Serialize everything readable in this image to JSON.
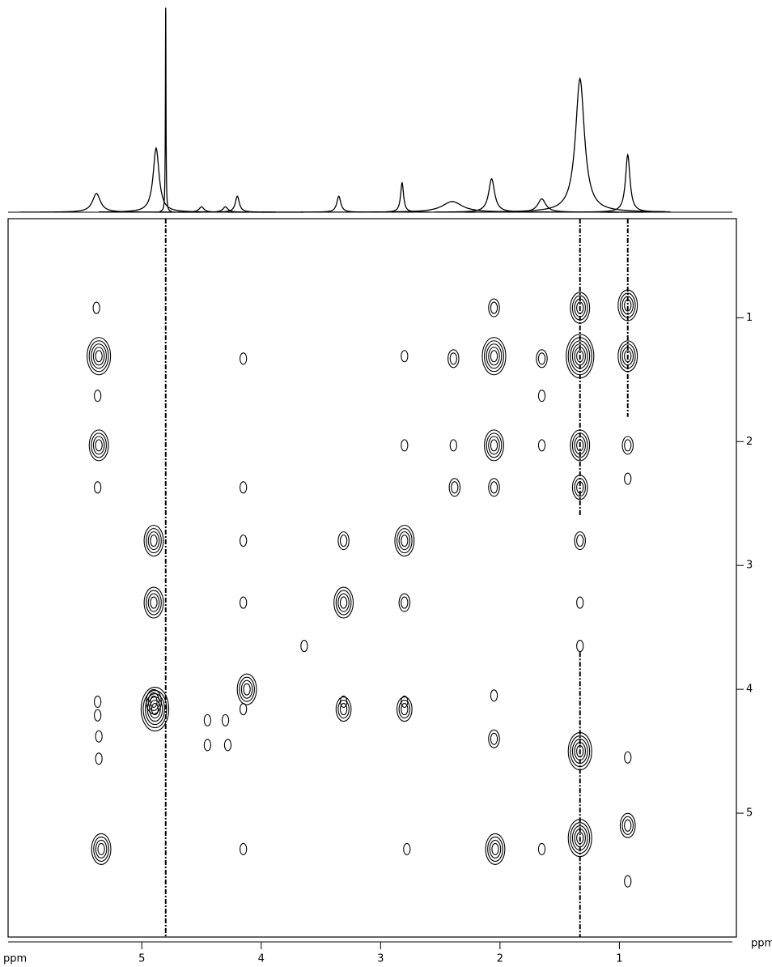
{
  "chart_data": {
    "type": "contour",
    "xlabel": "ppm",
    "ylabel": "ppm",
    "xlim": [
      6.12,
      0.02
    ],
    "ylim": [
      0.2,
      6.0
    ],
    "xticks": [
      5,
      4,
      3,
      2,
      1
    ],
    "yticks": [
      1,
      2,
      3,
      4,
      5
    ],
    "color": "#000000",
    "projection": {
      "x": [
        5.38,
        4.88,
        4.8,
        4.5,
        4.3,
        4.2,
        3.35,
        2.82,
        2.4,
        2.07,
        1.65,
        1.33,
        0.93
      ],
      "heights": [
        14,
        48,
        153,
        4,
        4,
        12,
        12,
        22,
        8,
        25,
        10,
        100,
        43
      ],
      "widths": [
        0.08,
        0.06,
        0.006,
        0.05,
        0.05,
        0.04,
        0.04,
        0.03,
        0.2,
        0.06,
        0.08,
        0.09,
        0.045
      ]
    },
    "streaks": {
      "x": [
        4.8,
        1.33,
        1.33,
        0.93
      ],
      "y0": [
        0.2,
        0.2,
        3.7,
        0.2
      ],
      "y1": [
        6.0,
        2.6,
        6.0,
        1.8
      ]
    },
    "peaks": {
      "x": [
        5.38,
        5.36,
        5.37,
        5.36,
        5.37,
        5.37,
        5.37,
        5.36,
        5.36,
        5.34,
        4.9,
        4.9,
        4.9,
        4.89,
        4.15,
        4.15,
        4.15,
        4.15,
        4.12,
        4.15,
        4.15,
        4.45,
        4.3,
        4.45,
        4.28,
        3.31,
        3.31,
        3.31,
        3.31,
        3.64,
        2.8,
        2.8,
        2.8,
        2.8,
        2.8,
        2.8,
        2.78,
        2.39,
        2.39,
        2.38,
        2.05,
        2.05,
        2.05,
        2.05,
        2.05,
        2.05,
        2.04,
        1.65,
        1.65,
        1.65,
        1.65,
        1.33,
        1.33,
        1.33,
        1.33,
        1.33,
        1.33,
        1.33,
        1.33,
        1.33,
        0.93,
        0.93,
        0.93,
        0.93,
        0.93,
        0.93,
        0.93
      ],
      "y": [
        0.92,
        1.31,
        1.63,
        2.03,
        2.37,
        4.1,
        4.21,
        4.38,
        4.56,
        5.29,
        2.8,
        3.3,
        4.1,
        4.16,
        1.33,
        2.37,
        2.8,
        3.3,
        4.0,
        4.16,
        5.29,
        4.25,
        4.25,
        4.45,
        4.45,
        2.8,
        3.3,
        4.1,
        4.16,
        3.65,
        1.31,
        2.03,
        2.8,
        3.3,
        4.1,
        4.16,
        5.29,
        1.33,
        2.03,
        2.37,
        0.92,
        1.31,
        2.03,
        2.37,
        4.05,
        4.4,
        5.29,
        1.33,
        1.63,
        2.03,
        5.29,
        0.92,
        1.31,
        2.03,
        2.37,
        2.8,
        3.3,
        3.65,
        4.5,
        5.2,
        0.9,
        1.31,
        2.03,
        2.3,
        4.55,
        5.1,
        5.55
      ],
      "levels": [
        1,
        5,
        1,
        4,
        1,
        1,
        1,
        1,
        1,
        4,
        4,
        4,
        3,
        6,
        1,
        1,
        1,
        1,
        4,
        1,
        1,
        1,
        1,
        1,
        1,
        2,
        4,
        1,
        3,
        1,
        1,
        1,
        4,
        2,
        1,
        3,
        1,
        2,
        1,
        2,
        2,
        5,
        4,
        2,
        1,
        2,
        4,
        2,
        1,
        1,
        1,
        4,
        6,
        4,
        3,
        2,
        1,
        1,
        5,
        5,
        4,
        4,
        2,
        1,
        1,
        3,
        1
      ]
    }
  }
}
